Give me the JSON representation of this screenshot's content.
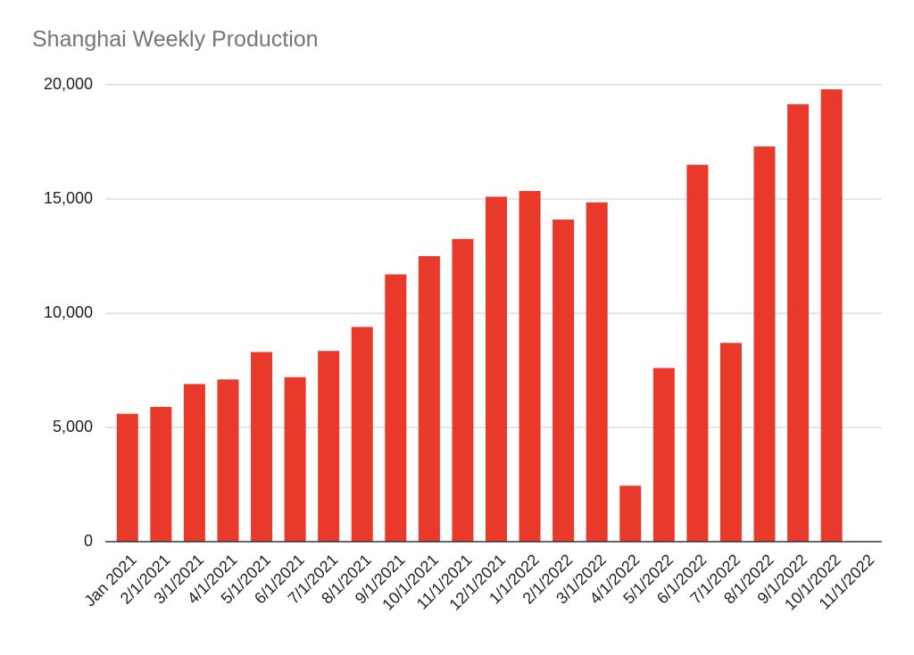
{
  "chart_data": {
    "type": "bar",
    "title": "Shanghai Weekly Production",
    "categories": [
      "Jan 2021",
      "2/1/2021",
      "3/1/2021",
      "4/1/2021",
      "5/1/2021",
      "6/1/2021",
      "7/1/2021",
      "8/1/2021",
      "9/1/2021",
      "10/1/2021",
      "11/1/2021",
      "12/1/2021",
      "1/1/2022",
      "2/1/2022",
      "3/1/2022",
      "4/1/2022",
      "5/1/2022",
      "6/1/2022",
      "7/1/2022",
      "8/1/2022",
      "9/1/2022",
      "10/1/2022",
      "11/1/2022"
    ],
    "values": [
      5600,
      5900,
      6900,
      7100,
      8300,
      7200,
      8350,
      9400,
      11700,
      12500,
      13250,
      15100,
      15350,
      14100,
      14850,
      2450,
      7600,
      16500,
      8700,
      17300,
      19150,
      19800,
      null
    ],
    "color": "#e8392a",
    "ylim": [
      0,
      20000
    ],
    "yticks": [
      0,
      {
        "value": 5000,
        "label": "5,000"
      },
      {
        "value": 10000,
        "label": "10,000"
      },
      {
        "value": 15000,
        "label": "15,000"
      },
      {
        "value": 20000,
        "label": "20,000"
      }
    ],
    "grid": true
  }
}
